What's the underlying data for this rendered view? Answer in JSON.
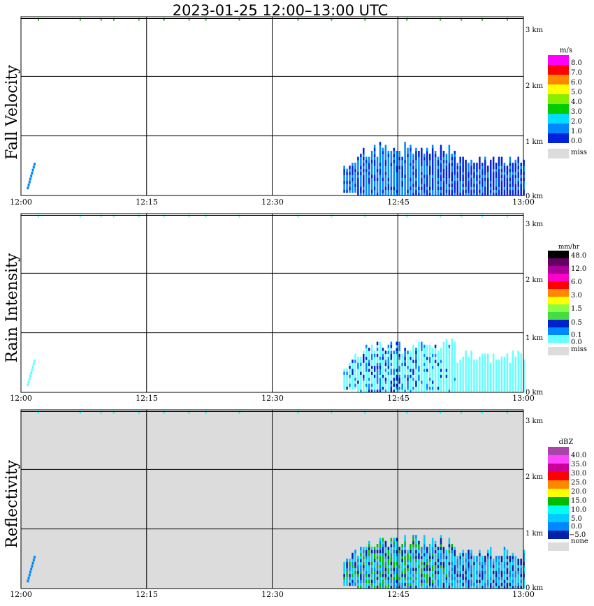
{
  "title": "2023-01-25  12:00–13:00 UTC",
  "colors": {
    "grid": "#000000",
    "missing_bg": "#dcdcdc",
    "fall_velocity": [
      "#0022dd",
      "#0088ff",
      "#00ddff",
      "#00cc00",
      "#88ee00",
      "#ffff00",
      "#ff8800",
      "#ff0000",
      "#ff00ff"
    ],
    "rain_intensity": [
      "#ffffff",
      "#66ffff",
      "#0088ff",
      "#0022cc",
      "#44dd44",
      "#88ff44",
      "#ffff00",
      "#ff8800",
      "#ff0000",
      "#ff00cc",
      "#aa0099",
      "#660066",
      "#000000"
    ],
    "reflectivity": [
      "#0022aa",
      "#0088ff",
      "#00ccff",
      "#00ffee",
      "#00bb00",
      "#ffff00",
      "#ff8800",
      "#ff0000",
      "#cc0099",
      "#ff44ff",
      "#aa44aa"
    ]
  },
  "chart_data": [
    {
      "type": "heatmap",
      "ylabel": "Fall Velocity",
      "x_ticks": [
        "12:00",
        "12:15",
        "12:30",
        "12:45",
        "13:00"
      ],
      "y_ticks": [
        "0 km",
        "1 km",
        "2 km",
        "3 km"
      ],
      "xlim": [
        0,
        60
      ],
      "ylim": [
        0,
        3
      ],
      "grid": true,
      "colorbar": {
        "unit": "m/s",
        "labels": [
          "8.0",
          "7.0",
          "6.0",
          "5.0",
          "4.0",
          "3.0",
          "2.0",
          "1.0",
          "0.0"
        ],
        "missing_label": "miss"
      },
      "echo": {
        "start_min": 38.5,
        "core_min": 44,
        "end_min": 60,
        "top_km": 0.8,
        "dominant": "0.0–2.0 m/s"
      }
    },
    {
      "type": "heatmap",
      "ylabel": "Rain Intensity",
      "x_ticks": [
        "12:00",
        "12:15",
        "12:30",
        "12:45",
        "13:00"
      ],
      "y_ticks": [
        "0 km",
        "1 km",
        "2 km",
        "3 km"
      ],
      "xlim": [
        0,
        60
      ],
      "ylim": [
        0,
        3
      ],
      "grid": true,
      "colorbar": {
        "unit": "mm/hr",
        "labels": [
          "48.0",
          "12.0",
          "6.0",
          "3.0",
          "1.5",
          "0.5",
          "0.1",
          "0.0"
        ],
        "missing_label": "miss"
      },
      "echo": {
        "start_min": 38.5,
        "core_min": 44,
        "end_min": 60,
        "top_km": 0.8,
        "dominant": "0.1–0.5 mm/hr"
      }
    },
    {
      "type": "heatmap",
      "ylabel": "Reflectivity",
      "x_ticks": [
        "12:00",
        "12:15",
        "12:30",
        "12:45",
        "13:00"
      ],
      "y_ticks": [
        "0 km",
        "1 km",
        "2 km",
        "3 km"
      ],
      "xlim": [
        0,
        60
      ],
      "ylim": [
        0,
        3
      ],
      "grid": true,
      "colorbar": {
        "unit": "dBZ",
        "labels": [
          "40.0",
          "35.0",
          "30.0",
          "25.0",
          "20.0",
          "15.0",
          "10.0",
          "5.0",
          "0.0",
          "−5.0"
        ],
        "missing_label": "none"
      },
      "echo": {
        "start_min": 38.5,
        "core_min": 44,
        "end_min": 60,
        "top_km": 0.8,
        "dominant": "0–15 dBZ"
      }
    }
  ]
}
